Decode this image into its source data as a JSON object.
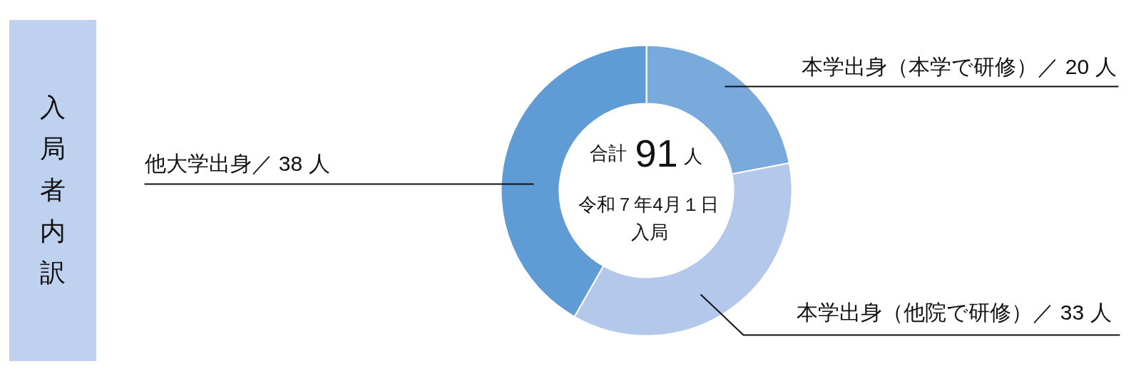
{
  "chart_data": {
    "type": "donut",
    "title": "入局者内訳",
    "categories": [
      "本学出身（本学で研修）／",
      "本学出身（他院で研修）／",
      "他大学出身／"
    ],
    "values": [
      20,
      33,
      38
    ],
    "value_labels": [
      "20 人",
      "33 人",
      "38 人"
    ],
    "colors": [
      "#7aa9dc",
      "#b3c8ea",
      "#5f9cd6"
    ],
    "annotations": [
      "合計",
      "91",
      "人",
      "令和７年4月１日",
      "入局"
    ]
  }
}
